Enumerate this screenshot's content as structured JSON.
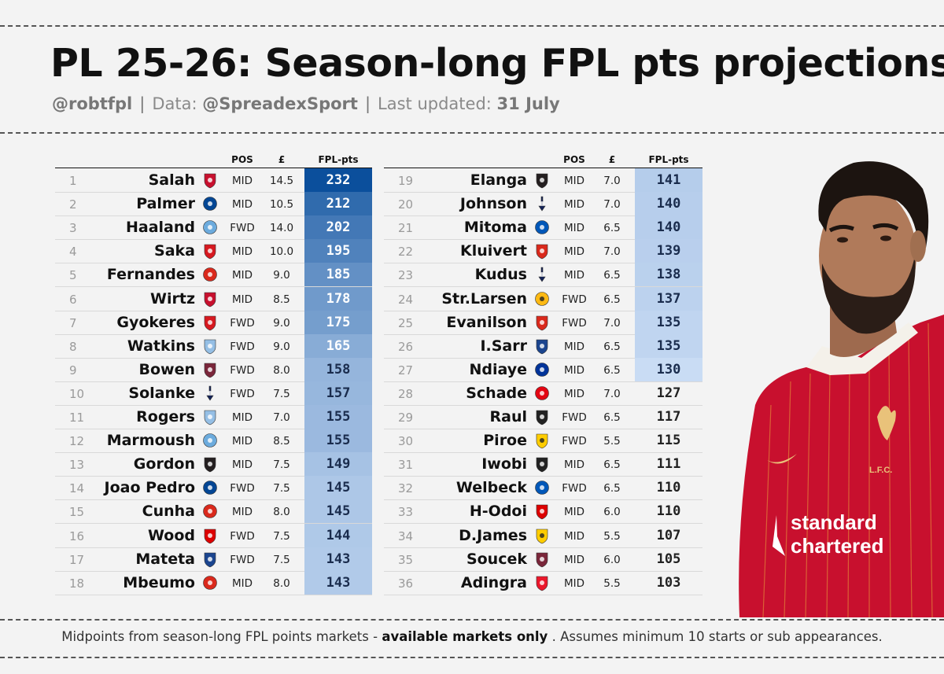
{
  "title": "PL 25-26: Season-long FPL pts projections",
  "subtitle": {
    "handle": "@robtfpl",
    "data_prefix": "Data:",
    "data_source": "@SpreadexSport",
    "updated_prefix": "Last updated:",
    "updated_date": "31 July"
  },
  "table_headers": {
    "pos": "POS",
    "price": "£",
    "pts": "FPL-pts"
  },
  "players_left": [
    {
      "rank": "1",
      "name": "Salah",
      "club": "liverpool",
      "pos": "MID",
      "price": "14.5",
      "pts": "232"
    },
    {
      "rank": "2",
      "name": "Palmer",
      "club": "chelsea",
      "pos": "MID",
      "price": "10.5",
      "pts": "212"
    },
    {
      "rank": "3",
      "name": "Haaland",
      "club": "man-city",
      "pos": "FWD",
      "price": "14.0",
      "pts": "202"
    },
    {
      "rank": "4",
      "name": "Saka",
      "club": "arsenal",
      "pos": "MID",
      "price": "10.0",
      "pts": "195"
    },
    {
      "rank": "5",
      "name": "Fernandes",
      "club": "man-utd",
      "pos": "MID",
      "price": "9.0",
      "pts": "185"
    },
    {
      "rank": "6",
      "name": "Wirtz",
      "club": "liverpool",
      "pos": "MID",
      "price": "8.5",
      "pts": "178"
    },
    {
      "rank": "7",
      "name": "Gyokeres",
      "club": "arsenal",
      "pos": "FWD",
      "price": "9.0",
      "pts": "175"
    },
    {
      "rank": "8",
      "name": "Watkins",
      "club": "aston-villa",
      "pos": "FWD",
      "price": "9.0",
      "pts": "165"
    },
    {
      "rank": "9",
      "name": "Bowen",
      "club": "west-ham",
      "pos": "FWD",
      "price": "8.0",
      "pts": "158"
    },
    {
      "rank": "10",
      "name": "Solanke",
      "club": "spurs",
      "pos": "FWD",
      "price": "7.5",
      "pts": "157"
    },
    {
      "rank": "11",
      "name": "Rogers",
      "club": "aston-villa",
      "pos": "MID",
      "price": "7.0",
      "pts": "155"
    },
    {
      "rank": "12",
      "name": "Marmoush",
      "club": "man-city",
      "pos": "MID",
      "price": "8.5",
      "pts": "155"
    },
    {
      "rank": "13",
      "name": "Gordon",
      "club": "newcastle",
      "pos": "MID",
      "price": "7.5",
      "pts": "149"
    },
    {
      "rank": "14",
      "name": "Joao Pedro",
      "club": "chelsea",
      "pos": "FWD",
      "price": "7.5",
      "pts": "145"
    },
    {
      "rank": "15",
      "name": "Cunha",
      "club": "man-utd",
      "pos": "MID",
      "price": "8.0",
      "pts": "145"
    },
    {
      "rank": "16",
      "name": "Wood",
      "club": "forest",
      "pos": "FWD",
      "price": "7.5",
      "pts": "144"
    },
    {
      "rank": "17",
      "name": "Mateta",
      "club": "palace",
      "pos": "FWD",
      "price": "7.5",
      "pts": "143"
    },
    {
      "rank": "18",
      "name": "Mbeumo",
      "club": "man-utd",
      "pos": "MID",
      "price": "8.0",
      "pts": "143"
    }
  ],
  "players_right": [
    {
      "rank": "19",
      "name": "Elanga",
      "club": "newcastle",
      "pos": "MID",
      "price": "7.0",
      "pts": "141"
    },
    {
      "rank": "20",
      "name": "Johnson",
      "club": "spurs",
      "pos": "MID",
      "price": "7.0",
      "pts": "140"
    },
    {
      "rank": "21",
      "name": "Mitoma",
      "club": "brighton",
      "pos": "MID",
      "price": "6.5",
      "pts": "140"
    },
    {
      "rank": "22",
      "name": "Kluivert",
      "club": "bournemouth",
      "pos": "MID",
      "price": "7.0",
      "pts": "139"
    },
    {
      "rank": "23",
      "name": "Kudus",
      "club": "spurs",
      "pos": "MID",
      "price": "6.5",
      "pts": "138"
    },
    {
      "rank": "24",
      "name": "Str.Larsen",
      "club": "wolves",
      "pos": "FWD",
      "price": "6.5",
      "pts": "137"
    },
    {
      "rank": "25",
      "name": "Evanilson",
      "club": "bournemouth",
      "pos": "FWD",
      "price": "7.0",
      "pts": "135"
    },
    {
      "rank": "26",
      "name": "I.Sarr",
      "club": "palace",
      "pos": "MID",
      "price": "6.5",
      "pts": "135"
    },
    {
      "rank": "27",
      "name": "Ndiaye",
      "club": "everton",
      "pos": "MID",
      "price": "6.5",
      "pts": "130"
    },
    {
      "rank": "28",
      "name": "Schade",
      "club": "brentford",
      "pos": "MID",
      "price": "7.0",
      "pts": "127"
    },
    {
      "rank": "29",
      "name": "Raul",
      "club": "fulham",
      "pos": "FWD",
      "price": "6.5",
      "pts": "117"
    },
    {
      "rank": "30",
      "name": "Piroe",
      "club": "leeds",
      "pos": "FWD",
      "price": "5.5",
      "pts": "115"
    },
    {
      "rank": "31",
      "name": "Iwobi",
      "club": "fulham",
      "pos": "MID",
      "price": "6.5",
      "pts": "111"
    },
    {
      "rank": "32",
      "name": "Welbeck",
      "club": "brighton",
      "pos": "FWD",
      "price": "6.5",
      "pts": "110"
    },
    {
      "rank": "33",
      "name": "H-Odoi",
      "club": "forest",
      "pos": "MID",
      "price": "6.0",
      "pts": "110"
    },
    {
      "rank": "34",
      "name": "D.James",
      "club": "leeds",
      "pos": "MID",
      "price": "5.5",
      "pts": "107"
    },
    {
      "rank": "35",
      "name": "Soucek",
      "club": "west-ham",
      "pos": "MID",
      "price": "6.0",
      "pts": "105"
    },
    {
      "rank": "36",
      "name": "Adingra",
      "club": "sunderland",
      "pos": "MID",
      "price": "5.5",
      "pts": "103"
    }
  ],
  "footer": {
    "text_before": "Midpoints from season-long FPL points markets - ",
    "bold": "available markets only",
    "text_after": " . Assumes minimum 10 starts or sub appearances."
  },
  "colors": {
    "pts_high": "#0b4f9c",
    "pts_low": "#cfe0f7",
    "liverpool": "#c8102e",
    "chelsea": "#034694",
    "man-city": "#6cabdd",
    "arsenal": "#d71920",
    "man-utd": "#da291c",
    "aston-villa": "#95bfe5",
    "west-ham": "#7a263a",
    "spurs": "#132257",
    "newcastle": "#241f20",
    "forest": "#dd0000",
    "palace": "#1b458f",
    "brighton": "#0057b8",
    "bournemouth": "#da291c",
    "wolves": "#fdb913",
    "everton": "#003399",
    "brentford": "#e30613",
    "fulham": "#222222",
    "leeds": "#ffcd00",
    "sunderland": "#eb172b"
  },
  "player_image": {
    "kit_text_1": "standard",
    "kit_text_2": "chartered",
    "crest_text": "L.F.C."
  }
}
